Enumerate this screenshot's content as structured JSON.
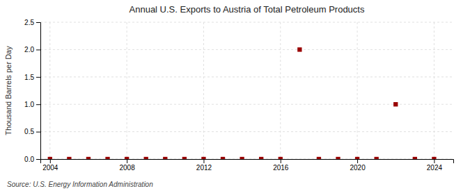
{
  "chart_data": {
    "type": "scatter",
    "title": "Annual U.S. Exports to Austria of Total Petroleum Products",
    "y_label": "Thousand Barrels per Day",
    "annotation": "Source: U.S. Energy Information Administration",
    "x": [
      2004,
      2005,
      2006,
      2007,
      2008,
      2009,
      2010,
      2011,
      2012,
      2013,
      2014,
      2015,
      2016,
      2017,
      2018,
      2019,
      2020,
      2021,
      2022,
      2023,
      2024
    ],
    "values": [
      0.0,
      0.0,
      0.0,
      0.0,
      0.0,
      0.0,
      0.0,
      0.0,
      0.0,
      0.0,
      0.0,
      0.0,
      0.0,
      2.0,
      0.0,
      0.0,
      0.0,
      0.0,
      1.0,
      0.0,
      0.0
    ],
    "color": "#990000",
    "marker": "square",
    "grid": true,
    "xlim": [
      2003.5,
      2025
    ],
    "xticks": [
      2004,
      2008,
      2012,
      2016,
      2020,
      2024
    ],
    "ylim": [
      0,
      2.5
    ],
    "yticks": [
      {
        "value": 0.0,
        "label": "0.0"
      },
      0.5,
      {
        "value": 1.0,
        "label": "1.0"
      },
      1.5,
      {
        "value": 2.0,
        "label": "2.0"
      },
      2.5
    ]
  }
}
